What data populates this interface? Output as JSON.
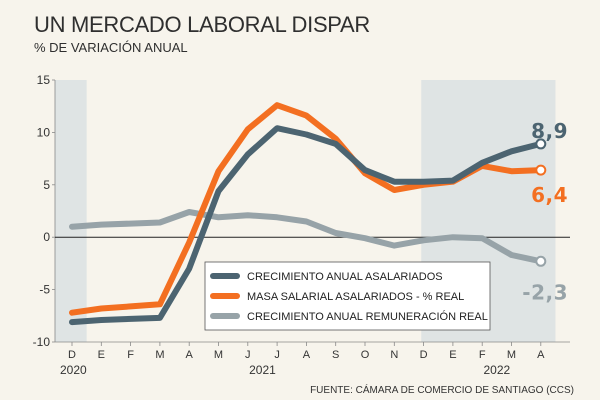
{
  "chart_data": {
    "type": "line",
    "title": "UN MERCADO LABORAL DISPAR",
    "subtitle": "% DE VARIACIÓN ANUAL",
    "source": "FUENTE: CÁMARA DE COMERCIO DE SANTIAGO (CCS)",
    "x": [
      "D",
      "E",
      "F",
      "M",
      "A",
      "M",
      "J",
      "J",
      "A",
      "S",
      "O",
      "N",
      "D",
      "E",
      "F",
      "M",
      "A"
    ],
    "years": [
      {
        "label": "2020",
        "index": 0
      },
      {
        "label": "2021",
        "index": 6.5
      },
      {
        "label": "2022",
        "index": 14.5
      }
    ],
    "ylim": [
      -10,
      15
    ],
    "yticks": [
      -10,
      -5,
      0,
      5,
      10,
      15
    ],
    "shaded_ranges": [
      [
        0,
        0.5
      ],
      [
        12.5,
        16.5
      ]
    ],
    "series": [
      {
        "name": "CRECIMIENTO ANUAL ASALARIADOS",
        "color": "#4c6471",
        "values": [
          -8.1,
          -7.9,
          -7.8,
          -7.7,
          -3.0,
          4.4,
          7.9,
          10.4,
          9.8,
          8.9,
          6.4,
          5.3,
          5.3,
          5.4,
          7.1,
          8.2,
          8.9
        ],
        "end_label": "8,9"
      },
      {
        "name": "MASA SALARIAL ASALARIADOS - % REAL",
        "color": "#f36f21",
        "values": [
          -7.2,
          -6.8,
          -6.6,
          -6.4,
          -0.5,
          6.3,
          10.3,
          12.6,
          11.6,
          9.4,
          6.1,
          4.5,
          5.0,
          5.3,
          6.8,
          6.3,
          6.4
        ],
        "end_label": "6,4"
      },
      {
        "name": "CRECIMIENTO ANUAL REMUNERACIÓN REAL",
        "color": "#97a3a8",
        "values": [
          1.0,
          1.2,
          1.3,
          1.4,
          2.4,
          1.9,
          2.1,
          1.9,
          1.5,
          0.4,
          -0.1,
          -0.8,
          -0.3,
          0.0,
          -0.1,
          -1.7,
          -2.3
        ],
        "end_label": "-2,3"
      }
    ],
    "legend_position": "bottom-right"
  }
}
